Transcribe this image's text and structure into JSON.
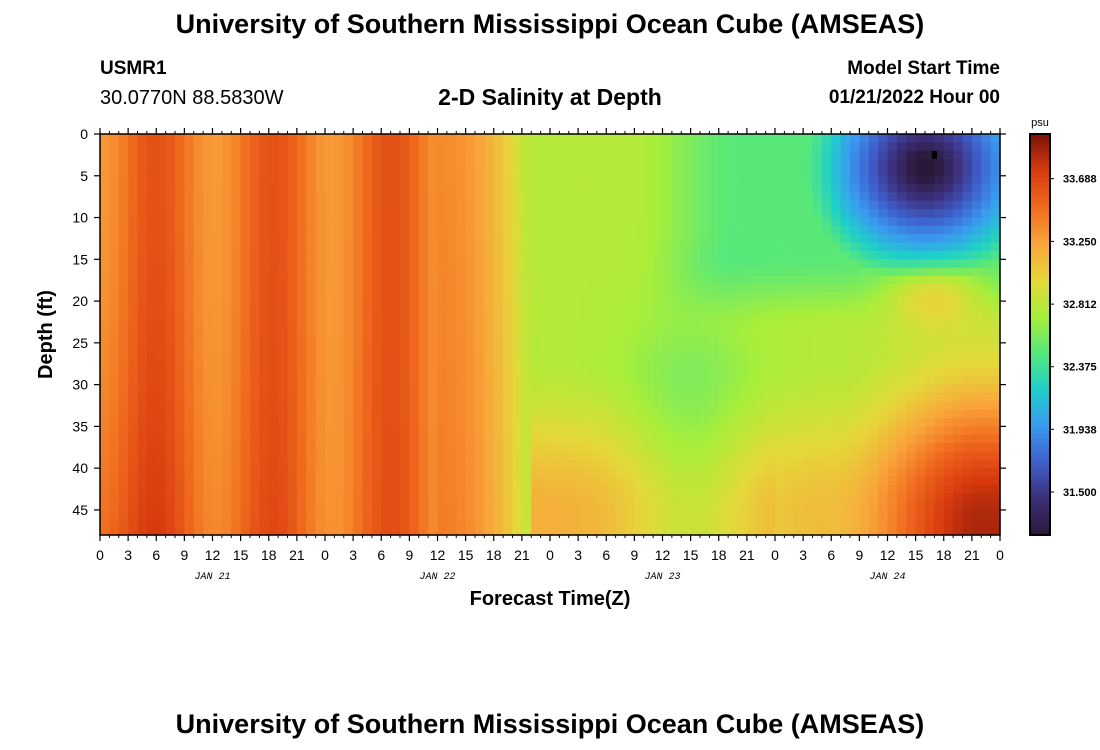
{
  "header": {
    "title": "University of Southern Mississippi Ocean Cube (AMSEAS)",
    "station": "USMR1",
    "coords": "30.0770N  88.5830W",
    "subtitle": "2-D Salinity at Depth",
    "model_start_label": "Model Start Time",
    "model_start_value": "01/21/2022 Hour 00"
  },
  "footer": {
    "title": "University of Southern Mississippi Ocean Cube (AMSEAS)"
  },
  "colors": {
    "colormap": [
      "#2a1838",
      "#3d2f7a",
      "#3e5fcc",
      "#3a9bf0",
      "#1ed0c8",
      "#57e87a",
      "#a8ee3a",
      "#e5d83a",
      "#f9a43a",
      "#f06a1e",
      "#d83a0e",
      "#7a1208"
    ]
  },
  "chart_data": {
    "type": "heatmap",
    "xlabel": "Forecast Time(Z)",
    "ylabel": "Depth (ft)",
    "x_range_hours": [
      0,
      96
    ],
    "ylim": [
      0,
      48
    ],
    "y_ticks": [
      0,
      5,
      10,
      15,
      20,
      25,
      30,
      35,
      40,
      45
    ],
    "x_tick_labels": [
      "0",
      "3",
      "6",
      "9",
      "12",
      "15",
      "18",
      "21",
      "0",
      "3",
      "6",
      "9",
      "12",
      "15",
      "18",
      "21",
      "0",
      "3",
      "6",
      "9",
      "12",
      "15",
      "18",
      "21",
      "0",
      "3",
      "6",
      "9",
      "12",
      "15",
      "18",
      "21",
      "0"
    ],
    "day_labels": [
      "JAN 21",
      "JAN 22",
      "JAN 23",
      "JAN 24"
    ],
    "colorbar": {
      "unit": "psu",
      "ticks": [
        "33.688",
        "33.250",
        "32.812",
        "32.375",
        "31.938",
        "31.500"
      ],
      "tick_values": [
        33.688,
        33.25,
        32.812,
        32.375,
        31.938,
        31.5
      ],
      "range": [
        31.2,
        34.0
      ]
    },
    "grid": false,
    "model": {
      "description_values_psu": "approximate salinity field reconstructed from colors",
      "surface_band_centers_hours": [
        6,
        18,
        31
      ],
      "low_center": {
        "hour": 88,
        "depth": 3,
        "value": 31.35
      },
      "min_marker": {
        "hour": 89,
        "depth": 2.5
      }
    }
  }
}
